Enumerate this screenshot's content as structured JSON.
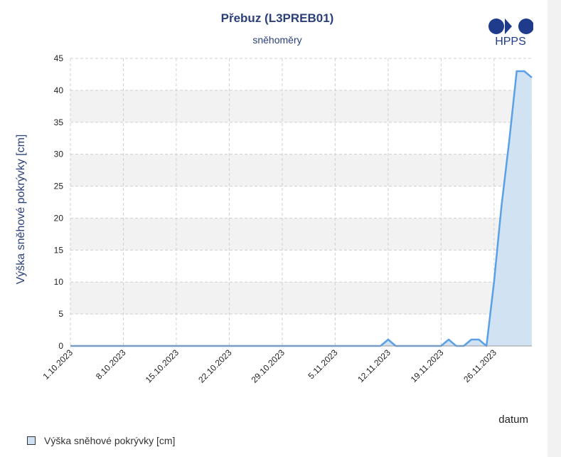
{
  "header": {
    "title": "Přebuz (L3PREB01)",
    "subtitle": "sněhoměry",
    "logo_text": "HPPS"
  },
  "legend": {
    "label": "Výška sněhové pokrývky [cm]"
  },
  "colors": {
    "line": "#5aa0e6",
    "fill": "#cfe0f2",
    "band": "#f2f2f2",
    "grid": "#d0d0d0",
    "title": "#2b3f7a",
    "ylabel": "#2b3f7a",
    "logo": "#1f3b8c"
  },
  "chart_data": {
    "type": "area",
    "title": "Přebuz (L3PREB01)",
    "subtitle": "sněhoměry",
    "xlabel": "datum",
    "ylabel": "Výška sněhové pokrývky [cm]",
    "ylim": [
      0,
      45
    ],
    "yticks": [
      0,
      5,
      10,
      15,
      20,
      25,
      30,
      35,
      40,
      45
    ],
    "xlim": [
      "2023-10-01",
      "2023-12-01"
    ],
    "xticks": [
      "1.10.2023",
      "8.10.2023",
      "15.10.2023",
      "22.10.2023",
      "29.10.2023",
      "5.11.2023",
      "12.11.2023",
      "19.11.2023",
      "26.11.2023"
    ],
    "grid": true,
    "legend_position": "bottom-left",
    "series": [
      {
        "name": "Výška sněhové pokrývky [cm]",
        "x": [
          "2023-10-01",
          "2023-11-11",
          "2023-11-12",
          "2023-11-13",
          "2023-11-19",
          "2023-11-20",
          "2023-11-21",
          "2023-11-22",
          "2023-11-23",
          "2023-11-24",
          "2023-11-25",
          "2023-11-26",
          "2023-11-27",
          "2023-11-28",
          "2023-11-29",
          "2023-11-30",
          "2023-12-01"
        ],
        "values": [
          0,
          0,
          1,
          0,
          0,
          1,
          0,
          0,
          1,
          1,
          0,
          10,
          22,
          32,
          43,
          43,
          42
        ]
      }
    ]
  }
}
